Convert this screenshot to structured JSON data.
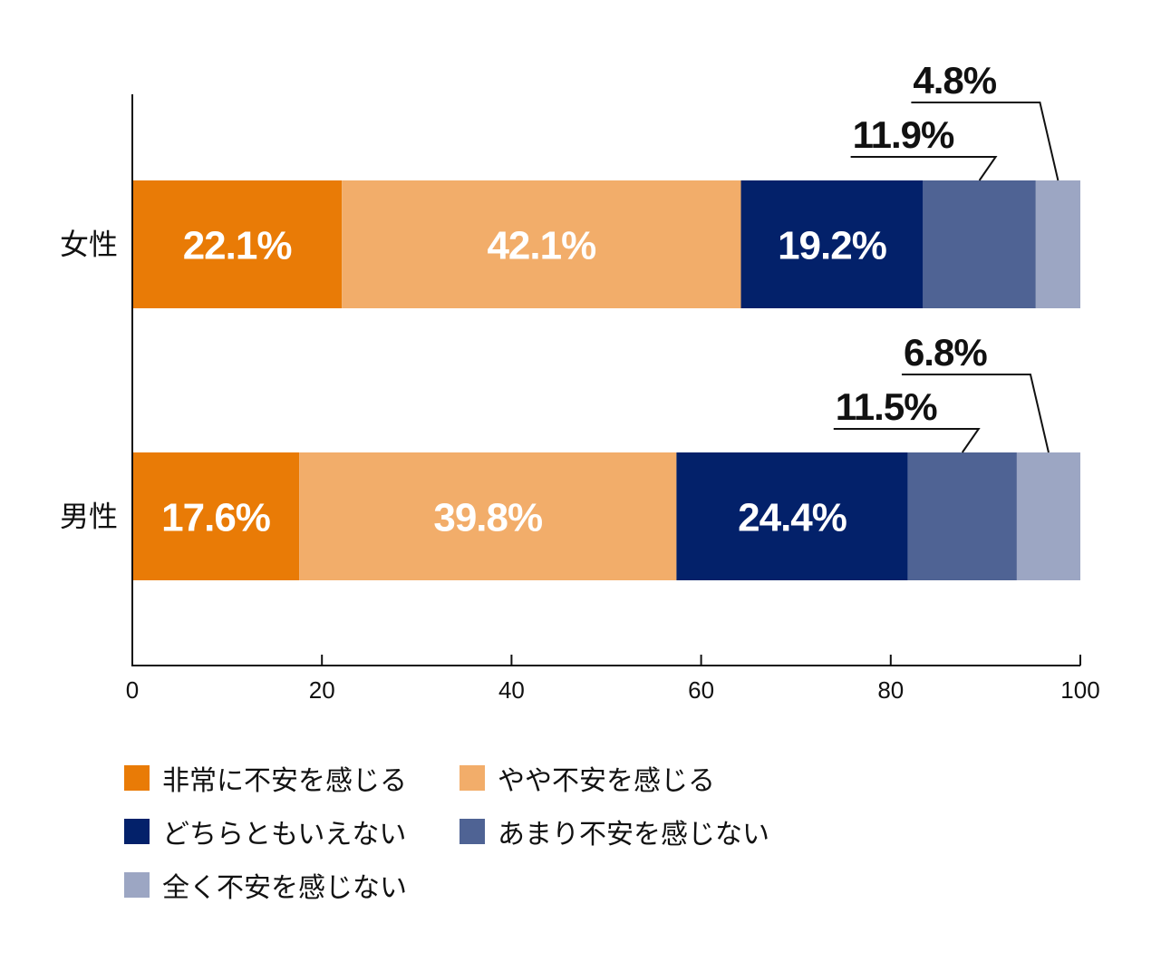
{
  "chart_data": {
    "type": "bar",
    "orientation": "horizontal",
    "stacked": true,
    "categories": [
      "女性",
      "男性"
    ],
    "series": [
      {
        "name": "非常に不安を感じる",
        "color": "#e97b06",
        "values": [
          22.1,
          17.6
        ],
        "labels": [
          "22.1%",
          "17.6%"
        ]
      },
      {
        "name": "やや不安を感じる",
        "color": "#f2ad6a",
        "values": [
          42.1,
          39.8
        ],
        "labels": [
          "42.1%",
          "39.8%"
        ]
      },
      {
        "name": "どちらともいえない",
        "color": "#03216a",
        "values": [
          19.2,
          24.4
        ],
        "labels": [
          "19.2%",
          "24.4%"
        ]
      },
      {
        "name": "あまり不安を感じない",
        "color": "#4f6394",
        "values": [
          11.9,
          11.5
        ],
        "labels": [
          "11.9%",
          "11.5%"
        ]
      },
      {
        "name": "全く不安を感じない",
        "color": "#9ca6c3",
        "values": [
          4.8,
          6.8
        ],
        "labels": [
          "4.8%",
          "6.8%"
        ]
      }
    ],
    "xlim": [
      0,
      100
    ],
    "xticks": [
      "0",
      "20",
      "40",
      "60",
      "80",
      "100"
    ],
    "grid": false,
    "legend_position": "bottom"
  }
}
